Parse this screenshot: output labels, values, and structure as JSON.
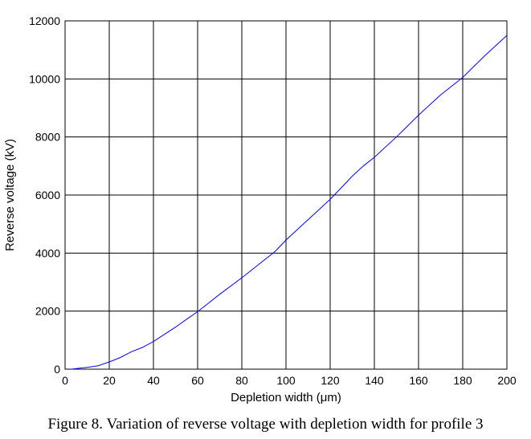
{
  "caption": "Figure 8. Variation of reverse voltage with depletion width for profile 3",
  "chart_data": {
    "type": "line",
    "title": "",
    "xlabel": "Depletion width (μm)",
    "ylabel": "Reverse voltage (kV)",
    "xlim": [
      0,
      200
    ],
    "ylim": [
      0,
      12000
    ],
    "xticks": [
      0,
      20,
      40,
      60,
      80,
      100,
      120,
      140,
      160,
      180,
      200
    ],
    "yticks": [
      0,
      2000,
      4000,
      6000,
      8000,
      10000,
      12000
    ],
    "grid": true,
    "line_color": "#0000ff",
    "series": [
      {
        "x": [
          3,
          5,
          10,
          15,
          20,
          25,
          30,
          35,
          40,
          45,
          50,
          55,
          60,
          70,
          80,
          90,
          95,
          100,
          110,
          120,
          125,
          130,
          135,
          140,
          150,
          160,
          170,
          180,
          190,
          200
        ],
        "values": [
          0,
          20,
          60,
          120,
          250,
          400,
          600,
          750,
          950,
          1200,
          1450,
          1720,
          1980,
          2580,
          3150,
          3750,
          4050,
          4450,
          5150,
          5850,
          6250,
          6650,
          7000,
          7300,
          8000,
          8750,
          9450,
          10050,
          10800,
          11500
        ]
      }
    ]
  }
}
